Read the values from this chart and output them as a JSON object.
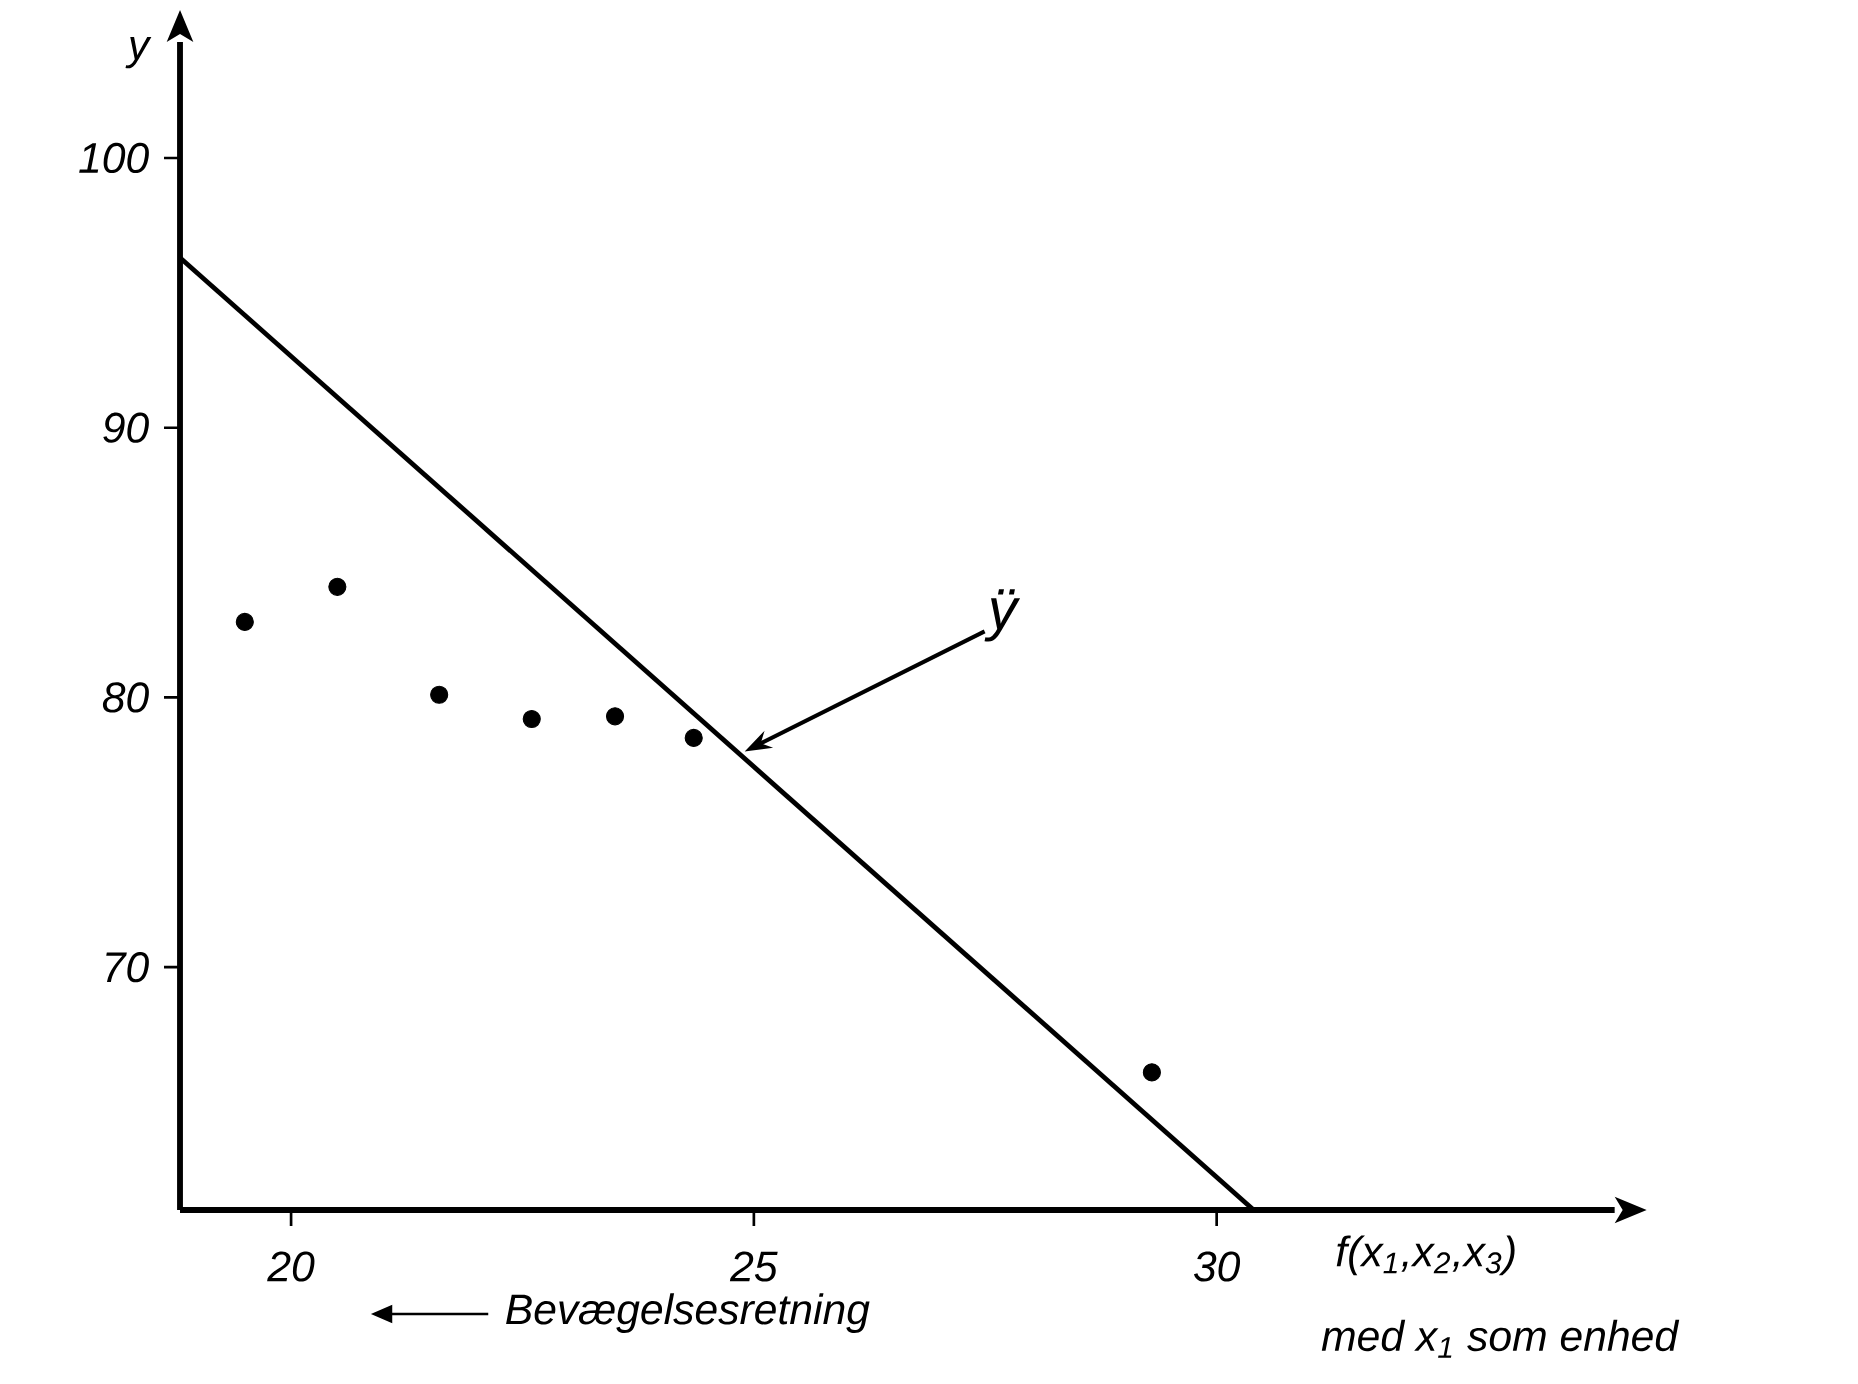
{
  "chart_data": {
    "type": "scatter",
    "xlabel": "f(x$_{1}$,x$_{2}$,x$_{3}$)",
    "ylabel": "y",
    "xlim": [
      18.8,
      34.3
    ],
    "ylim": [
      61,
      104.3
    ],
    "xticks": [
      20,
      25,
      30
    ],
    "yticks": [
      70,
      80,
      90,
      100
    ],
    "series": [
      {
        "color": "#000000",
        "marker": "circle",
        "x": [
          19.5,
          20.5,
          21.6,
          22.6,
          23.5,
          24.35,
          29.3
        ],
        "values": [
          82.8,
          84.1,
          80.1,
          79.2,
          79.3,
          78.5,
          66.1
        ]
      },
      {
        "type": "line",
        "color": "#000000",
        "line_style": "solid",
        "x": [
          18.8,
          30.4
        ],
        "values": [
          96.3,
          61
        ]
      }
    ],
    "annotations": [
      {
        "text": "ÿ",
        "x": 24.9,
        "y": 78
      },
      "med x$_{1}$ som enhed",
      "Bevægelsesretning"
    ]
  }
}
